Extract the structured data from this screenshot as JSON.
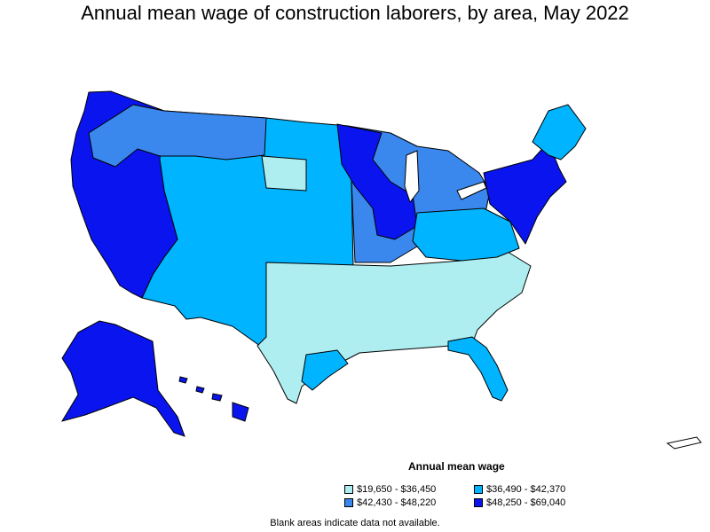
{
  "title": "Annual mean wage of construction laborers, by area, May 2022",
  "legend": {
    "title": "Annual mean wage",
    "items": [
      {
        "label": "$19,650 - $36,450",
        "color": "#aeeef0"
      },
      {
        "label": "$36,490 - $42,370",
        "color": "#00b4ff"
      },
      {
        "label": "$42,430 - $48,220",
        "color": "#3a88ee"
      },
      {
        "label": "$48,250 - $69,040",
        "color": "#0a14ee"
      }
    ]
  },
  "note": "Blank areas indicate data not available."
}
